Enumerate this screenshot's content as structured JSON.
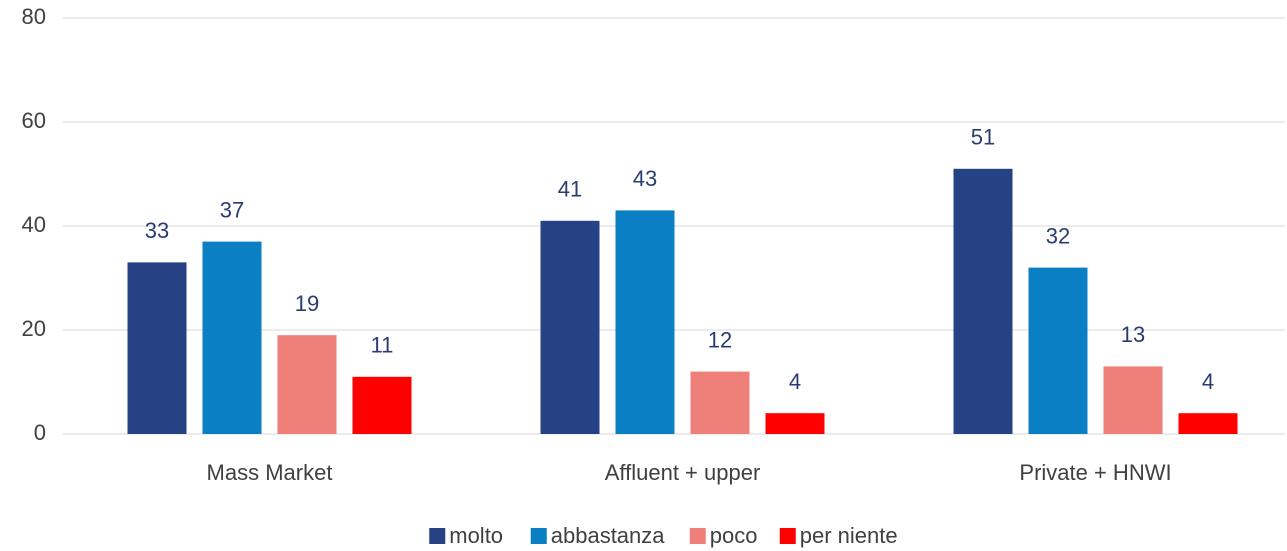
{
  "chart_data": {
    "type": "bar",
    "categories": [
      "Mass Market",
      "Affluent + upper",
      "Private + HNWI"
    ],
    "series": [
      {
        "name": "molto",
        "color": "#264184",
        "values": [
          33,
          41,
          51
        ]
      },
      {
        "name": "abbastanza",
        "color": "#0a7fc4",
        "values": [
          37,
          43,
          32
        ]
      },
      {
        "name": "poco",
        "color": "#ef7f79",
        "values": [
          19,
          12,
          13
        ]
      },
      {
        "name": "per niente",
        "color": "#ff0000",
        "values": [
          11,
          4,
          4
        ]
      }
    ],
    "ylim": [
      0,
      80
    ],
    "yticks": [
      0,
      20,
      40,
      60,
      80
    ],
    "grid": true,
    "legend": "bottom"
  }
}
